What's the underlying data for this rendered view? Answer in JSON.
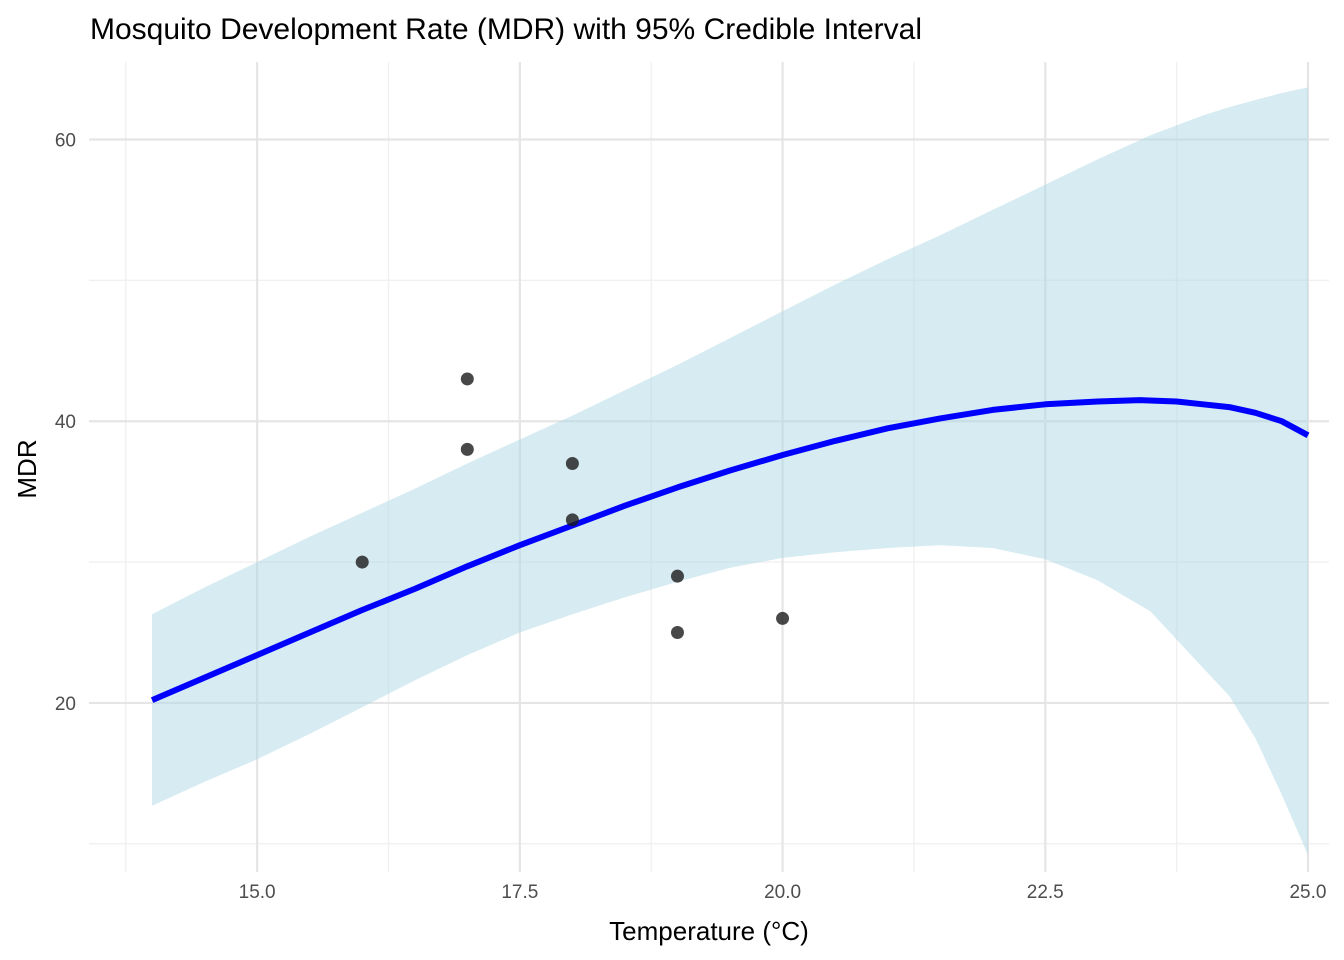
{
  "chart_data": {
    "type": "line",
    "title": "Mosquito Development Rate (MDR) with 95% Credible Interval",
    "xlabel": "Temperature (°C)",
    "ylabel": "MDR",
    "xlim": [
      13.4,
      25.2
    ],
    "ylim": [
      8.0,
      65.5
    ],
    "x_ticks": [
      15.0,
      17.5,
      20.0,
      22.5,
      25.0
    ],
    "x_tick_labels": [
      "15.0",
      "17.5",
      "20.0",
      "22.5",
      "25.0"
    ],
    "y_ticks": [
      20,
      40,
      60
    ],
    "y_tick_labels": [
      "20",
      "40",
      "60"
    ],
    "x_minor_ticks": [
      13.75,
      16.25,
      18.75,
      21.25,
      23.75
    ],
    "y_minor_ticks": [
      10,
      30,
      50
    ],
    "grid": true,
    "legend": "none",
    "colors": {
      "fit_line": "#0000ff",
      "ribbon": "#add8e6",
      "points": "#1a1a1a",
      "grid": "#e5e5e5"
    },
    "series": [
      {
        "type": "ribbon",
        "x": [
          14.0,
          14.5,
          15.0,
          15.5,
          16.0,
          16.5,
          17.0,
          17.5,
          18.0,
          18.5,
          19.0,
          19.5,
          20.0,
          20.5,
          21.0,
          21.5,
          22.0,
          22.5,
          23.0,
          23.5,
          24.0,
          24.25,
          24.5,
          24.75,
          25.0
        ],
        "lower": [
          12.7,
          14.4,
          16.0,
          17.8,
          19.7,
          21.6,
          23.4,
          25.0,
          26.3,
          27.5,
          28.6,
          29.6,
          30.3,
          30.7,
          31.0,
          31.2,
          31.0,
          30.2,
          28.7,
          26.5,
          22.5,
          20.5,
          17.5,
          13.5,
          9.2
        ],
        "upper": [
          26.3,
          28.2,
          30.0,
          31.8,
          33.5,
          35.2,
          37.0,
          38.7,
          40.4,
          42.2,
          44.0,
          45.9,
          47.8,
          49.7,
          51.5,
          53.2,
          55.0,
          56.8,
          58.6,
          60.3,
          61.7,
          62.3,
          62.8,
          63.3,
          63.7
        ]
      },
      {
        "type": "line",
        "x": [
          14.0,
          14.5,
          15.0,
          15.5,
          16.0,
          16.5,
          17.0,
          17.5,
          18.0,
          18.5,
          19.0,
          19.5,
          20.0,
          20.5,
          21.0,
          21.5,
          22.0,
          22.5,
          23.0,
          23.4,
          23.75,
          24.0,
          24.25,
          24.5,
          24.75,
          25.0
        ],
        "y": [
          20.2,
          21.8,
          23.4,
          25.0,
          26.6,
          28.1,
          29.7,
          31.2,
          32.6,
          34.0,
          35.3,
          36.5,
          37.6,
          38.6,
          39.5,
          40.2,
          40.8,
          41.2,
          41.4,
          41.5,
          41.4,
          41.2,
          41.0,
          40.6,
          40.0,
          39.0
        ]
      },
      {
        "type": "scatter",
        "x": [
          16.0,
          17.0,
          17.0,
          18.0,
          18.0,
          19.0,
          19.0,
          20.0
        ],
        "y": [
          30.0,
          43.0,
          38.0,
          37.0,
          33.0,
          29.0,
          25.0,
          26.0
        ]
      }
    ]
  }
}
